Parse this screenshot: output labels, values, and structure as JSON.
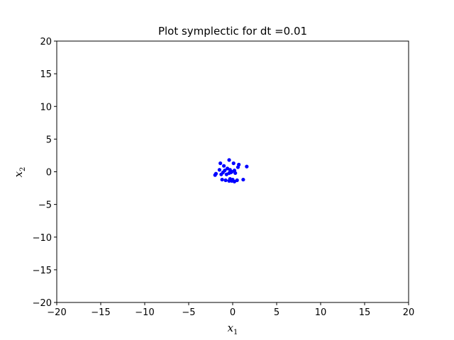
{
  "chart_data": {
    "type": "scatter",
    "title": "Plot symplectic for dt =0.01",
    "xlabel": {
      "base": "x",
      "sub": "1"
    },
    "ylabel": {
      "base": "x",
      "sub": "2"
    },
    "xlim": [
      -20,
      20
    ],
    "ylim": [
      -20,
      20
    ],
    "xticks": [
      -20,
      -15,
      -10,
      -5,
      0,
      5,
      10,
      15,
      20
    ],
    "yticks": [
      -20,
      -15,
      -10,
      -5,
      0,
      5,
      10,
      15,
      20
    ],
    "grid": false,
    "marker_color": "#0000ff",
    "series": [
      {
        "points": [
          [
            -0.4,
            1.8
          ],
          [
            -1.4,
            1.3
          ],
          [
            0.1,
            1.3
          ],
          [
            -1.0,
            0.9
          ],
          [
            0.7,
            1.1
          ],
          [
            0.6,
            0.7
          ],
          [
            1.6,
            0.8
          ],
          [
            -1.5,
            0.3
          ],
          [
            -0.9,
            0.2
          ],
          [
            -0.3,
            0.3
          ],
          [
            0.2,
            0.2
          ],
          [
            -0.1,
            0.0
          ],
          [
            -1.1,
            -0.1
          ],
          [
            -1.9,
            -0.3
          ],
          [
            -2.0,
            -0.5
          ],
          [
            -1.3,
            -0.4
          ],
          [
            -0.7,
            -0.4
          ],
          [
            -0.4,
            -0.2
          ],
          [
            -1.2,
            -1.2
          ],
          [
            -0.8,
            -1.3
          ],
          [
            -0.3,
            -1.1
          ],
          [
            -0.1,
            -1.4
          ],
          [
            0.2,
            -1.5
          ],
          [
            0.5,
            -1.3
          ],
          [
            1.2,
            -1.2
          ],
          [
            -0.4,
            -1.4
          ],
          [
            0.0,
            -1.2
          ],
          [
            -0.6,
            0.5
          ],
          [
            -0.2,
            -0.1
          ],
          [
            0.3,
            -0.2
          ]
        ]
      }
    ]
  }
}
